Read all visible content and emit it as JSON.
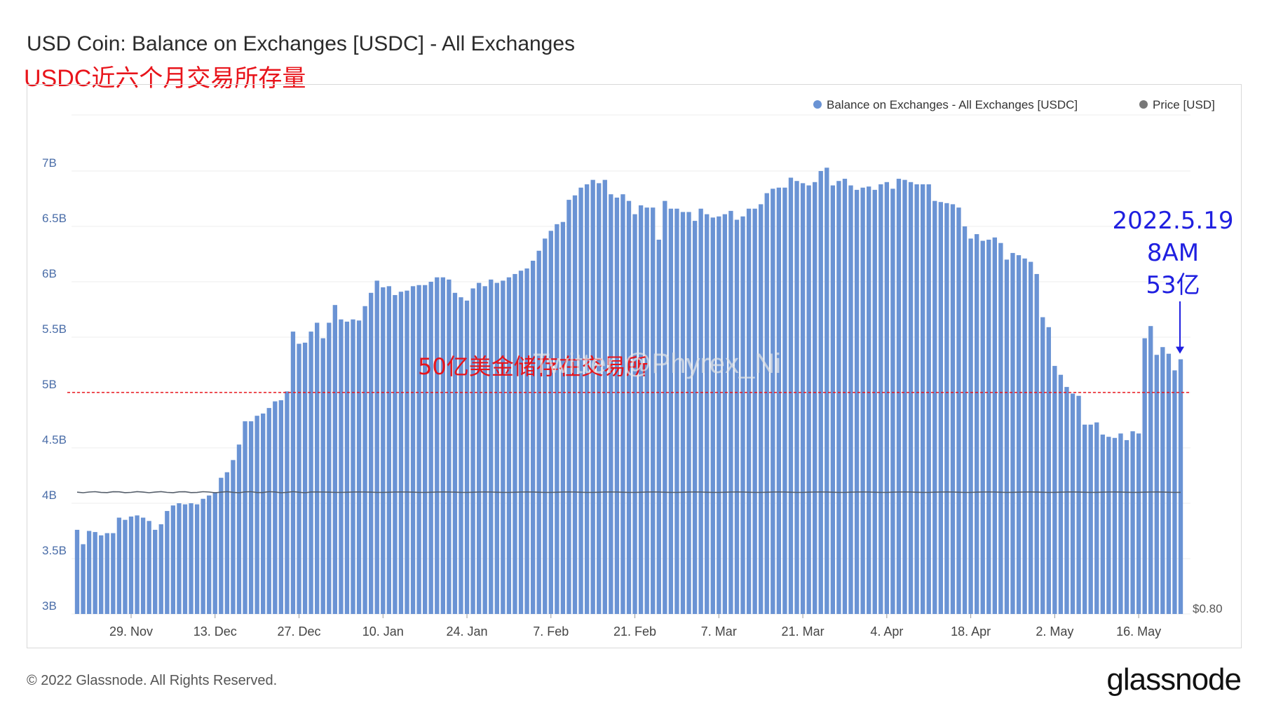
{
  "header": {
    "title": "USD Coin: Balance on Exchanges [USDC] - All Exchanges",
    "annotation_title": "USDC近六个月交易所存量"
  },
  "footer": {
    "copyright": "© 2022 Glassnode. All Rights Reserved.",
    "logo": "glassnode"
  },
  "colors": {
    "bar": "#6a93d4",
    "price": "#555e6a",
    "grid": "#eeeeee",
    "axis_text": "#4a6da8",
    "annotation_red": "#e8141b",
    "annotation_blue": "#1f1fe0"
  },
  "chart_data": {
    "type": "bar",
    "title": "USD Coin: Balance on Exchanges [USDC] - All Exchanges",
    "series": [
      {
        "name": "Balance on Exchanges - All Exchanges [USDC]",
        "type": "bar",
        "y_start": "2021-11-20",
        "y_step_days": 1,
        "values": [
          3.76,
          3.63,
          3.75,
          3.74,
          3.71,
          3.73,
          3.73,
          3.87,
          3.85,
          3.88,
          3.89,
          3.87,
          3.84,
          3.76,
          3.81,
          3.93,
          3.98,
          4.0,
          3.99,
          4.0,
          3.99,
          4.04,
          4.07,
          4.1,
          4.23,
          4.28,
          4.39,
          4.53,
          4.74,
          4.74,
          4.79,
          4.81,
          4.86,
          4.92,
          4.93,
          5.01,
          5.55,
          5.44,
          5.45,
          5.55,
          5.63,
          5.49,
          5.63,
          5.79,
          5.66,
          5.64,
          5.66,
          5.65,
          5.78,
          5.9,
          6.01,
          5.95,
          5.96,
          5.88,
          5.91,
          5.92,
          5.96,
          5.97,
          5.97,
          6.0,
          6.04,
          6.04,
          6.02,
          5.9,
          5.86,
          5.83,
          5.94,
          5.99,
          5.96,
          6.02,
          5.99,
          6.01,
          6.04,
          6.07,
          6.1,
          6.12,
          6.19,
          6.28,
          6.39,
          6.46,
          6.52,
          6.54,
          6.74,
          6.78,
          6.85,
          6.88,
          6.92,
          6.89,
          6.92,
          6.79,
          6.76,
          6.79,
          6.73,
          6.61,
          6.69,
          6.67,
          6.67,
          6.38,
          6.73,
          6.66,
          6.66,
          6.63,
          6.63,
          6.55,
          6.66,
          6.61,
          6.58,
          6.59,
          6.61,
          6.64,
          6.56,
          6.59,
          6.66,
          6.66,
          6.7,
          6.8,
          6.84,
          6.85,
          6.85,
          6.94,
          6.91,
          6.89,
          6.87,
          6.9,
          7.0,
          7.03,
          6.87,
          6.91,
          6.93,
          6.87,
          6.83,
          6.85,
          6.86,
          6.83,
          6.88,
          6.9,
          6.84,
          6.93,
          6.92,
          6.9,
          6.88,
          6.88,
          6.88,
          6.73,
          6.72,
          6.71,
          6.7,
          6.67,
          6.5,
          6.39,
          6.43,
          6.37,
          6.38,
          6.4,
          6.35,
          6.2,
          6.26,
          6.24,
          6.21,
          6.18,
          6.07,
          5.68,
          5.59,
          5.24,
          5.16,
          5.05,
          4.99,
          4.97,
          4.71,
          4.71,
          4.73,
          4.62,
          4.6,
          4.59,
          4.63,
          4.57,
          4.65,
          4.63,
          5.49,
          5.6,
          5.34,
          5.41,
          5.35,
          5.2,
          5.3
        ]
      },
      {
        "name": "Price [USD]",
        "type": "line",
        "constant": 1.0
      }
    ],
    "x_ticks": [
      "29. Nov",
      "13. Dec",
      "27. Dec",
      "10. Jan",
      "24. Jan",
      "7. Feb",
      "21. Feb",
      "7. Mar",
      "21. Mar",
      "4. Apr",
      "18. Apr",
      "2. May",
      "16. May"
    ],
    "y_ticks": [
      "3B",
      "3.5B",
      "4B",
      "4.5B",
      "5B",
      "5.5B",
      "6B",
      "6.5B",
      "7B"
    ],
    "y_right_tick": "$0.80",
    "ylim": [
      3.0,
      7.0
    ],
    "grid": true,
    "legend_position": "top-right",
    "reference_line": {
      "value": 5.0,
      "label": "50亿美金储存在交易所"
    },
    "callout": {
      "lines": [
        "2022.5.19",
        "8AM",
        "53亿"
      ],
      "target_value": 5.3
    },
    "watermark": "Twitter @Phyrex_Ni"
  }
}
